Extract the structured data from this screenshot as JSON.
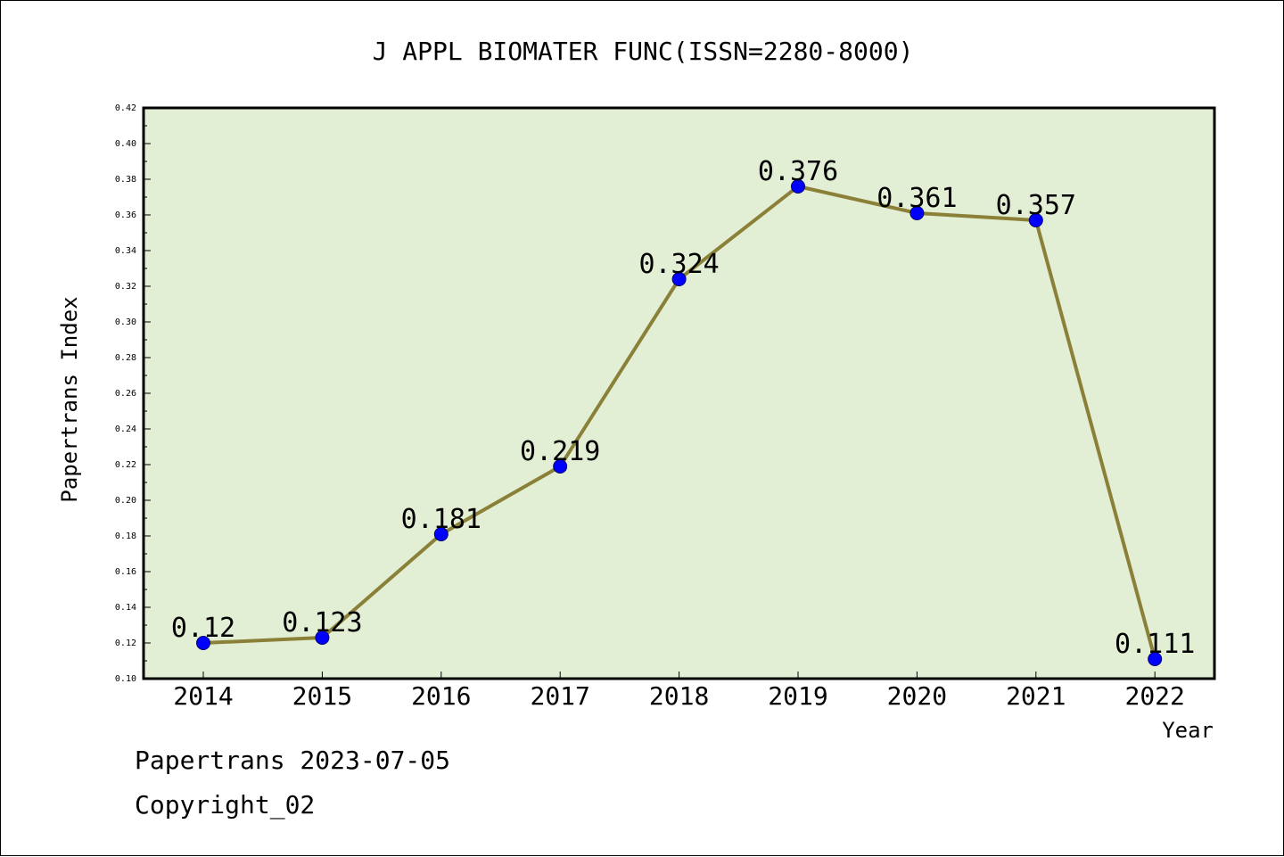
{
  "chart_data": {
    "type": "line",
    "title": "J APPL BIOMATER FUNC(ISSN=2280-8000)",
    "xlabel": "Year",
    "ylabel": "Papertrans Index",
    "categories": [
      "2014",
      "2015",
      "2016",
      "2017",
      "2018",
      "2019",
      "2020",
      "2021",
      "2022"
    ],
    "values": [
      0.12,
      0.123,
      0.181,
      0.219,
      0.324,
      0.376,
      0.361,
      0.357,
      0.111
    ],
    "data_labels": [
      "0.12",
      "0.123",
      "0.181",
      "0.219",
      "0.324",
      "0.376",
      "0.361",
      "0.357",
      "0.111"
    ],
    "ylim": [
      0.1,
      0.42
    ],
    "yticks": [
      "0.10",
      "0.12",
      "0.14",
      "0.16",
      "0.18",
      "0.20",
      "0.22",
      "0.24",
      "0.26",
      "0.28",
      "0.30",
      "0.32",
      "0.34",
      "0.36",
      "0.38",
      "0.40",
      "0.42"
    ],
    "grid": false,
    "colors": {
      "plot_background": "#e2efd4",
      "line": "#8b8038",
      "marker": "#0000ff"
    }
  },
  "footer": {
    "line1": "Papertrans 2023-07-05",
    "line2": "Copyright_02"
  }
}
